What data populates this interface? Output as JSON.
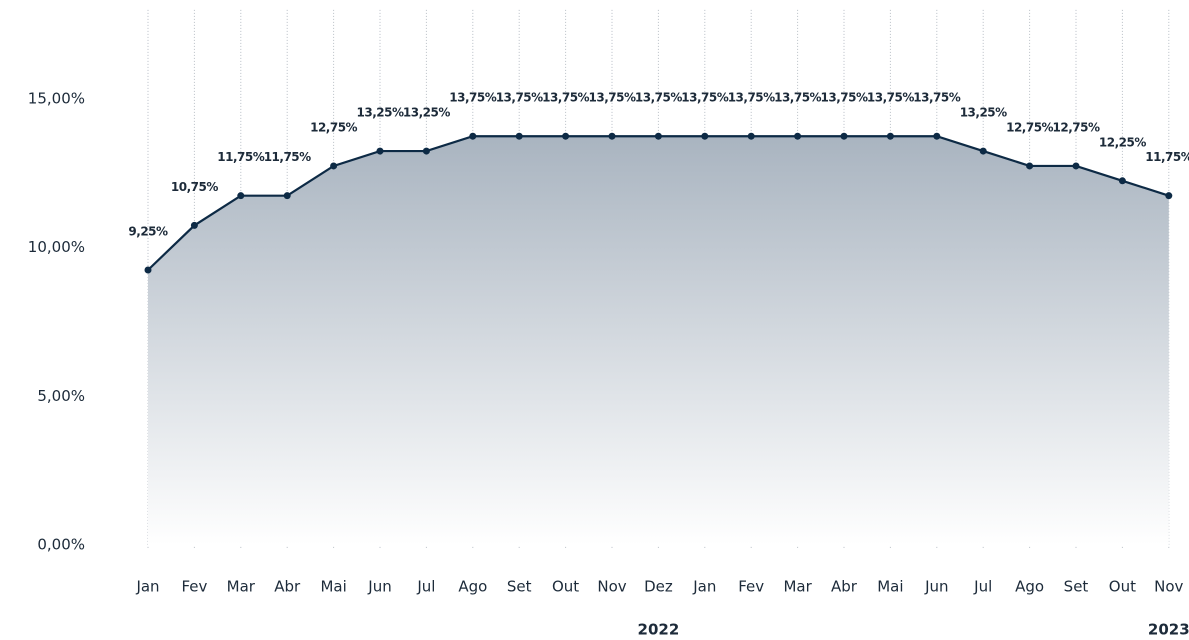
{
  "chart_data": {
    "type": "area",
    "categories": [
      "Jan",
      "Fev",
      "Mar",
      "Abr",
      "Mai",
      "Jun",
      "Jul",
      "Ago",
      "Set",
      "Out",
      "Nov",
      "Dez",
      "Jan",
      "Fev",
      "Mar",
      "Abr",
      "Mai",
      "Jun",
      "Jul",
      "Ago",
      "Set",
      "Out",
      "Nov"
    ],
    "values": [
      9.25,
      10.75,
      11.75,
      11.75,
      12.75,
      13.25,
      13.25,
      13.75,
      13.75,
      13.75,
      13.75,
      13.75,
      13.75,
      13.75,
      13.75,
      13.75,
      13.75,
      13.75,
      13.25,
      12.75,
      12.75,
      12.25,
      11.75
    ],
    "value_labels": [
      "9,25%",
      "10,75%",
      "11,75%",
      "11,75%",
      "12,75%",
      "13,25%",
      "13,25%",
      "13,75%",
      "13,75%",
      "13,75%",
      "13,75%",
      "13,75%",
      "13,75%",
      "13,75%",
      "13,75%",
      "13,75%",
      "13,75%",
      "13,75%",
      "13,25%",
      "12,75%",
      "12,75%",
      "12,25%",
      "11,75%"
    ],
    "color": "#0d2a45",
    "ylim": [
      0,
      18
    ],
    "yticks": [
      {
        "value": 0,
        "label": "0,00%"
      },
      {
        "value": 5,
        "label": "5,00%"
      },
      {
        "value": 10,
        "label": "10,00%"
      },
      {
        "value": 15,
        "label": "15,00%"
      }
    ],
    "annotations": [
      "2022",
      "2023"
    ]
  }
}
